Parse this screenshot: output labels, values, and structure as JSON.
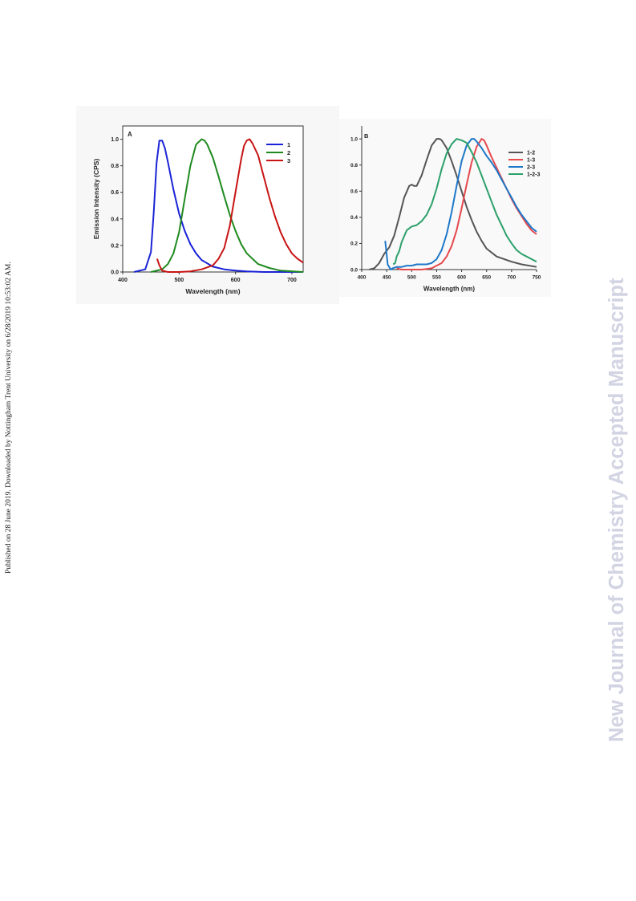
{
  "page": {
    "side_note": "Published on 28 June 2019. Downloaded by Nottingham Trent University on 6/28/2019 10:53:02 AM.",
    "watermark": "New Journal of Chemistry Accepted Manuscript"
  },
  "chart_data": [
    {
      "type": "line",
      "panel_label": "A",
      "xlabel": "Wavelength (nm)",
      "ylabel": "Emission Intensity (CPS)",
      "xlim": [
        400,
        720
      ],
      "ylim": [
        0,
        1.1
      ],
      "xticks": [
        400,
        500,
        600,
        700
      ],
      "yticks": [
        "0.0",
        "0.2",
        "0.4",
        "0.6",
        "0.8",
        "1.0"
      ],
      "legend_position": "top-right",
      "series": [
        {
          "name": "1",
          "color": "#1a23d6",
          "x": [
            420,
            440,
            450,
            455,
            460,
            465,
            470,
            475,
            480,
            490,
            500,
            510,
            520,
            530,
            540,
            560,
            580,
            600,
            620,
            650,
            680,
            720
          ],
          "y": [
            0.0,
            0.02,
            0.15,
            0.45,
            0.82,
            0.99,
            0.99,
            0.93,
            0.83,
            0.62,
            0.44,
            0.31,
            0.21,
            0.14,
            0.09,
            0.04,
            0.02,
            0.01,
            0.005,
            0.0,
            0.0,
            0.0
          ]
        },
        {
          "name": "2",
          "color": "#1f8a1f",
          "x": [
            450,
            470,
            480,
            490,
            500,
            510,
            520,
            530,
            540,
            545,
            550,
            560,
            570,
            580,
            590,
            600,
            610,
            620,
            640,
            660,
            680,
            720
          ],
          "y": [
            0.0,
            0.02,
            0.06,
            0.14,
            0.3,
            0.55,
            0.8,
            0.96,
            1.0,
            0.99,
            0.96,
            0.86,
            0.72,
            0.57,
            0.43,
            0.31,
            0.21,
            0.14,
            0.06,
            0.03,
            0.01,
            0.0
          ]
        },
        {
          "name": "3",
          "color": "#c81414",
          "x": [
            461,
            465,
            470,
            480,
            500,
            520,
            540,
            560,
            570,
            580,
            590,
            600,
            610,
            615,
            620,
            625,
            630,
            640,
            650,
            660,
            670,
            680,
            690,
            700,
            710,
            720
          ],
          "y": [
            0.1,
            0.05,
            0.01,
            0.0,
            0.0,
            0.005,
            0.02,
            0.05,
            0.1,
            0.18,
            0.35,
            0.6,
            0.85,
            0.95,
            0.99,
            1.0,
            0.97,
            0.88,
            0.72,
            0.56,
            0.42,
            0.3,
            0.21,
            0.14,
            0.1,
            0.07
          ]
        }
      ]
    },
    {
      "type": "line",
      "panel_label": "B",
      "xlabel": "Wavelength (nm)",
      "ylabel": "",
      "xlim": [
        400,
        750
      ],
      "ylim": [
        0,
        1.05
      ],
      "xticks": [
        400,
        450,
        500,
        550,
        600,
        650,
        700,
        750
      ],
      "yticks": [
        "0.0",
        "0.2",
        "0.4",
        "0.6",
        "0.8",
        "1.0"
      ],
      "legend_position": "right",
      "series": [
        {
          "name": "1-2",
          "color": "#555555",
          "x": [
            415,
            425,
            435,
            445,
            455,
            465,
            475,
            485,
            495,
            500,
            505,
            510,
            520,
            530,
            540,
            550,
            556,
            560,
            570,
            580,
            590,
            600,
            610,
            620,
            630,
            640,
            650,
            670,
            700,
            720,
            750
          ],
          "y": [
            0.0,
            0.01,
            0.05,
            0.12,
            0.17,
            0.26,
            0.4,
            0.55,
            0.64,
            0.65,
            0.64,
            0.64,
            0.72,
            0.84,
            0.95,
            1.0,
            1.0,
            0.99,
            0.93,
            0.83,
            0.72,
            0.6,
            0.48,
            0.38,
            0.29,
            0.22,
            0.16,
            0.1,
            0.06,
            0.04,
            0.02
          ]
        },
        {
          "name": "1-3",
          "color": "#e5484d",
          "x": [
            470,
            480,
            500,
            520,
            540,
            560,
            570,
            580,
            590,
            600,
            610,
            620,
            630,
            640,
            645,
            650,
            660,
            670,
            680,
            690,
            700,
            710,
            720,
            730,
            740,
            750
          ],
          "y": [
            0.01,
            0.0,
            0.0,
            0.0,
            0.01,
            0.05,
            0.1,
            0.18,
            0.3,
            0.47,
            0.65,
            0.82,
            0.94,
            1.0,
            0.99,
            0.95,
            0.86,
            0.78,
            0.7,
            0.62,
            0.54,
            0.47,
            0.41,
            0.35,
            0.3,
            0.27
          ]
        },
        {
          "name": "2-3",
          "color": "#1e78c8",
          "x": [
            447,
            452,
            458,
            462,
            470,
            480,
            490,
            500,
            510,
            520,
            530,
            540,
            550,
            560,
            570,
            580,
            590,
            600,
            610,
            620,
            625,
            630,
            640,
            650,
            660,
            670,
            680,
            690,
            700,
            710,
            720,
            730,
            740,
            750
          ],
          "y": [
            0.22,
            0.04,
            0.0,
            0.01,
            0.02,
            0.02,
            0.03,
            0.03,
            0.04,
            0.04,
            0.04,
            0.05,
            0.08,
            0.15,
            0.27,
            0.44,
            0.64,
            0.83,
            0.95,
            1.0,
            1.0,
            0.98,
            0.93,
            0.87,
            0.82,
            0.76,
            0.69,
            0.62,
            0.55,
            0.48,
            0.42,
            0.37,
            0.32,
            0.29
          ]
        },
        {
          "name": "1-2-3",
          "color": "#2ca06a",
          "x": [
            463,
            467,
            470,
            475,
            480,
            490,
            500,
            510,
            520,
            530,
            540,
            550,
            560,
            570,
            580,
            590,
            600,
            610,
            620,
            630,
            640,
            650,
            660,
            670,
            680,
            690,
            700,
            710,
            720,
            730,
            740,
            750
          ],
          "y": [
            0.04,
            0.05,
            0.1,
            0.14,
            0.21,
            0.3,
            0.33,
            0.34,
            0.37,
            0.42,
            0.5,
            0.62,
            0.77,
            0.89,
            0.96,
            1.0,
            0.99,
            0.97,
            0.9,
            0.82,
            0.72,
            0.62,
            0.52,
            0.42,
            0.34,
            0.26,
            0.2,
            0.15,
            0.12,
            0.1,
            0.08,
            0.06
          ]
        }
      ]
    }
  ]
}
